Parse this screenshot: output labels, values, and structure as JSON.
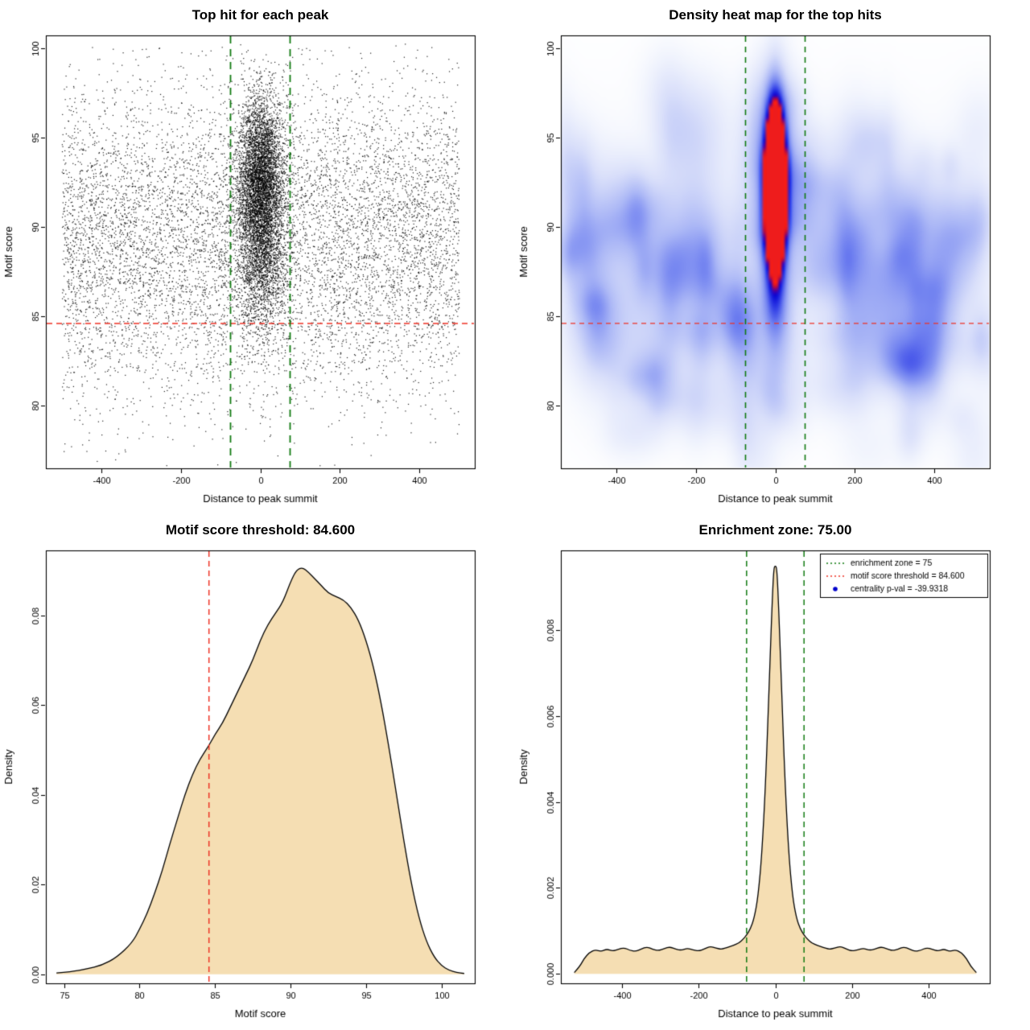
{
  "chart_data": [
    {
      "id": "top-hit-scatter",
      "type": "scatter",
      "title": "Top hit for each peak",
      "xlabel": "Distance to peak summit",
      "ylabel": "Motif score",
      "xlim": [
        -540,
        540
      ],
      "ylim": [
        76.5,
        100.7
      ],
      "xticks": [
        -400,
        -200,
        0,
        200,
        400
      ],
      "xtick_labels": [
        "-400",
        "-200",
        "0",
        "200",
        "400"
      ],
      "yticks": [
        80,
        85,
        90,
        95,
        100
      ],
      "ytick_labels": [
        "80",
        "85",
        "90",
        "95",
        "100"
      ],
      "point_color": "#000000",
      "threshold_line": {
        "y": 84.6,
        "color": "#ee3124"
      },
      "zone_lines": {
        "x": [
          -75,
          75
        ],
        "color": "#117a11"
      },
      "background_points": {
        "n": 8200,
        "x_range": [
          -500,
          500
        ],
        "score_mean": 89.3,
        "score_sd": 4.4
      },
      "cluster_points": {
        "n": 6800,
        "x_mean": 0,
        "x_sd": 30,
        "score_mean": 92.5,
        "score_sd": 2.4,
        "low_mix_frac": 0.25,
        "low_mix_mean": 88.2,
        "low_mix_sd": 2.4
      },
      "seed": 1337
    },
    {
      "id": "density-heatmap",
      "type": "heatmap",
      "title": "Density heat map for the top hits",
      "xlabel": "Distance to peak summit",
      "ylabel": "Motif score",
      "xlim": [
        -540,
        540
      ],
      "ylim": [
        76.5,
        100.7
      ],
      "xticks": [
        -400,
        -200,
        0,
        200,
        400
      ],
      "xtick_labels": [
        "-400",
        "-200",
        "0",
        "200",
        "400"
      ],
      "yticks": [
        80,
        85,
        90,
        95,
        100
      ],
      "ytick_labels": [
        "80",
        "85",
        "90",
        "95",
        "100"
      ],
      "threshold_line": {
        "y": 84.6,
        "color": "#ee3124"
      },
      "zone_lines": {
        "x": [
          -75,
          75
        ],
        "color": "#117a11"
      },
      "gaussians": [
        {
          "x": 0,
          "y": 92.3,
          "sx": 16,
          "sy": 2.9,
          "a": 2.3
        },
        {
          "x": 0,
          "y": 91.8,
          "sx": 34,
          "sy": 4.6,
          "a": 0.38
        },
        {
          "x": 0,
          "y": 88.3,
          "sx": 22,
          "sy": 4.0,
          "a": 0.22
        }
      ],
      "band": {
        "y": 89,
        "sy": 6,
        "a": 0.05
      },
      "noise": {
        "count": 190,
        "seed": 424242
      },
      "colormap": [
        [
          0,
          [
            255,
            255,
            255
          ]
        ],
        [
          0.08,
          [
            241,
            244,
            253
          ]
        ],
        [
          0.22,
          [
            217,
            223,
            250
          ]
        ],
        [
          0.4,
          [
            172,
            184,
            246
          ]
        ],
        [
          0.58,
          [
            112,
            129,
            240
          ]
        ],
        [
          0.72,
          [
            52,
            66,
            231
          ]
        ],
        [
          0.84,
          [
            10,
            12,
            216
          ]
        ],
        [
          0.9,
          [
            70,
            0,
            170
          ]
        ],
        [
          0.95,
          [
            185,
            12,
            60
          ]
        ],
        [
          1,
          [
            238,
            28,
            28
          ]
        ]
      ]
    },
    {
      "id": "score-density",
      "type": "area",
      "title": "Motif score threshold: 84.600",
      "xlabel": "Motif score",
      "ylabel": "Density",
      "xlim": [
        73.8,
        102.2
      ],
      "ylim": [
        -0.002,
        0.0945
      ],
      "xticks": [
        75,
        80,
        85,
        90,
        95,
        100
      ],
      "xtick_labels": [
        "75",
        "80",
        "85",
        "90",
        "95",
        "100"
      ],
      "yticks": [
        0,
        0.02,
        0.04,
        0.06,
        0.08
      ],
      "ytick_labels": [
        "0.00",
        "0.02",
        "0.04",
        "0.06",
        "0.08"
      ],
      "fill": "#f5deb3",
      "stroke": "#000000",
      "vlines": [
        {
          "x": 84.6,
          "color": "#ee3124"
        }
      ],
      "curve": {
        "x": [
          74.5,
          75.5,
          76.5,
          77.5,
          78.5,
          79.5,
          80,
          80.5,
          81,
          81.5,
          82,
          82.5,
          83,
          83.5,
          84,
          84.6,
          85,
          85.5,
          86,
          86.5,
          87,
          87.5,
          88,
          88.5,
          89,
          89.5,
          90,
          90.4,
          90.8,
          91.2,
          91.6,
          92,
          92.5,
          93,
          93.5,
          94,
          94.5,
          95,
          95.5,
          96,
          96.5,
          97,
          97.5,
          98,
          98.5,
          99,
          99.5,
          100,
          100.5,
          101,
          101.5
        ],
        "y": [
          0.0003,
          0.0006,
          0.0012,
          0.002,
          0.0038,
          0.007,
          0.01,
          0.0135,
          0.018,
          0.023,
          0.029,
          0.0345,
          0.04,
          0.0445,
          0.048,
          0.051,
          0.0535,
          0.056,
          0.0595,
          0.063,
          0.0665,
          0.07,
          0.0745,
          0.078,
          0.0805,
          0.083,
          0.0875,
          0.0902,
          0.0907,
          0.0896,
          0.0882,
          0.0868,
          0.085,
          0.0842,
          0.0835,
          0.0818,
          0.079,
          0.0745,
          0.0685,
          0.0605,
          0.051,
          0.0405,
          0.0298,
          0.0202,
          0.0126,
          0.0073,
          0.0039,
          0.0019,
          0.0009,
          0.0004,
          0.0002
        ]
      }
    },
    {
      "id": "distance-density",
      "type": "area",
      "title": "Enrichment zone: 75.00",
      "xlabel": "Distance to peak summit",
      "ylabel": "Density",
      "xlim": [
        -560,
        560
      ],
      "ylim": [
        -0.00022,
        0.00985
      ],
      "xticks": [
        -400,
        -200,
        0,
        200,
        400
      ],
      "xtick_labels": [
        "-400",
        "-200",
        "0",
        "200",
        "400"
      ],
      "yticks": [
        0,
        0.002,
        0.004,
        0.006,
        0.008
      ],
      "ytick_labels": [
        "0.000",
        "0.002",
        "0.004",
        "0.006",
        "0.008"
      ],
      "fill": "#f5deb3",
      "stroke": "#000000",
      "vlines": [
        {
          "x": -75,
          "color": "#117a11"
        },
        {
          "x": 75,
          "color": "#117a11"
        }
      ],
      "curve": {
        "x": [
          -525,
          -510,
          -500,
          -485,
          -470,
          -455,
          -440,
          -425,
          -410,
          -395,
          -380,
          -365,
          -350,
          -335,
          -320,
          -305,
          -290,
          -275,
          -260,
          -245,
          -230,
          -215,
          -200,
          -185,
          -170,
          -155,
          -140,
          -125,
          -110,
          -95,
          -85,
          -75,
          -65,
          -55,
          -45,
          -35,
          -25,
          -15,
          -8,
          -4,
          0,
          4,
          8,
          15,
          25,
          35,
          45,
          55,
          65,
          75,
          85,
          95,
          110,
          125,
          140,
          155,
          170,
          185,
          200,
          215,
          230,
          245,
          260,
          275,
          290,
          305,
          320,
          335,
          350,
          365,
          380,
          395,
          410,
          425,
          440,
          455,
          470,
          485,
          500,
          510,
          525
        ],
        "y": [
          3e-05,
          0.00018,
          0.00035,
          0.0005,
          0.00056,
          0.00052,
          0.00058,
          0.00053,
          0.00057,
          0.00061,
          0.00055,
          0.00052,
          0.00058,
          0.00063,
          0.00057,
          0.00054,
          0.00059,
          0.00063,
          0.00057,
          0.00055,
          0.0006,
          0.00056,
          0.00053,
          0.00058,
          0.00064,
          0.0006,
          0.00057,
          0.00062,
          0.00066,
          0.00072,
          0.0008,
          0.0009,
          0.00105,
          0.0013,
          0.0018,
          0.0028,
          0.0045,
          0.007,
          0.0087,
          0.00943,
          0.0095,
          0.00943,
          0.0087,
          0.007,
          0.0045,
          0.0028,
          0.0018,
          0.0013,
          0.00105,
          0.0009,
          0.0008,
          0.00072,
          0.00066,
          0.00062,
          0.00057,
          0.0006,
          0.00064,
          0.00058,
          0.00053,
          0.00056,
          0.0006,
          0.00055,
          0.00057,
          0.00063,
          0.00059,
          0.00054,
          0.00057,
          0.00063,
          0.00058,
          0.00052,
          0.00055,
          0.00061,
          0.00057,
          0.00053,
          0.00058,
          0.00052,
          0.00056,
          0.0005,
          0.00035,
          0.00018,
          3e-05
        ]
      },
      "legend": {
        "items": [
          {
            "marker": "dotted-line",
            "color": "#117a11",
            "label": "enrichment zone = 75"
          },
          {
            "marker": "dotted-line",
            "color": "#ee3124",
            "label": "motif score threshold = 84.600"
          },
          {
            "marker": "dot",
            "color": "#0000cc",
            "label": "centrality p-val = -39.9318"
          }
        ]
      }
    }
  ]
}
